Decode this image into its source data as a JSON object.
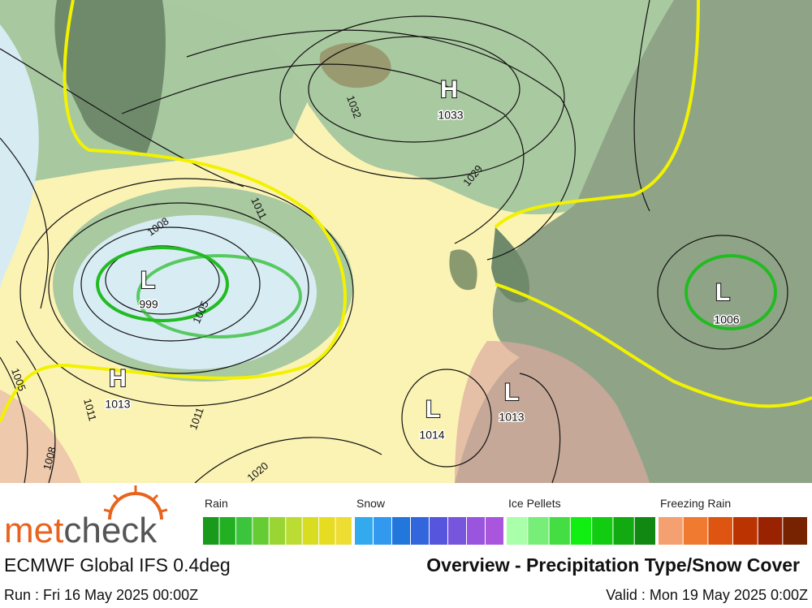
{
  "map": {
    "pressure_centers": [
      {
        "letter": "H",
        "value": 1033
      },
      {
        "letter": "L",
        "value": 999
      },
      {
        "letter": "L",
        "value": 1006
      },
      {
        "letter": "H",
        "value": 1013
      },
      {
        "letter": "L",
        "value": 1014
      },
      {
        "letter": "L",
        "value": 1013
      }
    ],
    "isobar_labels": [
      1032,
      1029,
      1008,
      1011,
      1005,
      1011,
      1011,
      1008,
      1005,
      1020
    ]
  },
  "legend": [
    {
      "name": "Rain",
      "colors": [
        "#1a9a1a",
        "#22b022",
        "#3cc43c",
        "#66cc33",
        "#99d633",
        "#bbdd33",
        "#d8dd22",
        "#e6dc22",
        "#eedd33"
      ]
    },
    {
      "name": "Snow",
      "colors": [
        "#33aaee",
        "#3399ee",
        "#2277dd",
        "#3366dd",
        "#5555dd",
        "#7755dd",
        "#9955dd",
        "#aa55dd"
      ]
    },
    {
      "name": "Ice Pellets",
      "colors": [
        "#aaffaa",
        "#77ee77",
        "#44dd44",
        "#11ee11",
        "#11cc11",
        "#11aa11",
        "#118811"
      ]
    },
    {
      "name": "Freezing Rain",
      "colors": [
        "#f4a070",
        "#f07a30",
        "#dd5511",
        "#bb3300",
        "#992200",
        "#772200"
      ]
    }
  ],
  "footer": {
    "brand_met": "met",
    "brand_check": "check",
    "model": "ECMWF Global IFS 0.4deg",
    "title": "Overview - Precipitation Type/Snow Cover",
    "run": "Run : Fri 16 May 2025 00:00Z",
    "valid": "Valid : Mon 19 May 2025 0:00Z"
  }
}
